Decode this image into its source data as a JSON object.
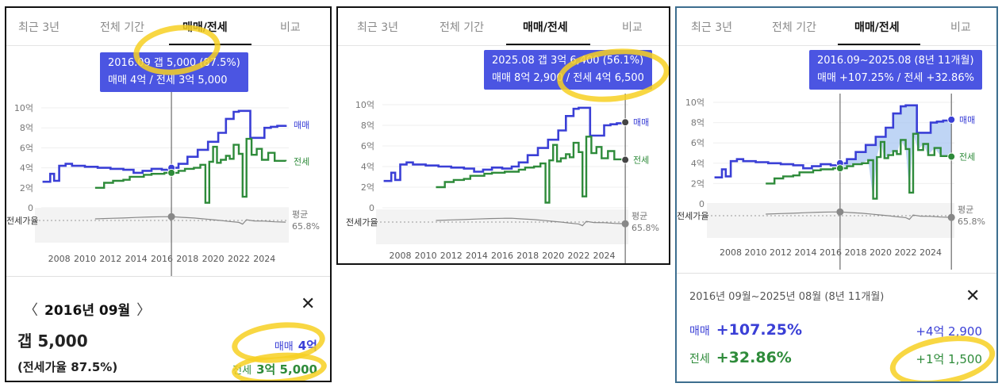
{
  "tabs": [
    "최근 3년",
    "전체 기간",
    "매매/전세",
    "비교"
  ],
  "active_tab": "매매/전세",
  "colors": {
    "sale": "#3a3fd6",
    "jeonse": "#2e8b3a",
    "ratio": "#888888",
    "tooltip_bg": "#4b55e2",
    "highlight": "#f7d022",
    "fill": "#a9c7f2"
  },
  "panel1": {
    "tooltip_line1": "2016.09  갭 5,000 (87.5%)",
    "tooltip_line2": "매매 4억 / 전세 3억 5,000",
    "detail": {
      "date": "2016년 09월",
      "prev_icon": "chevron-left-icon",
      "next_icon": "chevron-right-icon",
      "close_icon": "close-icon",
      "gap": "갭 5,000",
      "ratio": "(전세가율 87.5%)",
      "sale_label": "매매",
      "sale_value": "4억",
      "jeonse_label": "전세",
      "jeonse_value": "3억 5,000"
    }
  },
  "panel2": {
    "tooltip_line1": "2025.08  갭 3억 6,400 (56.1%)",
    "tooltip_line2": "매매 8억 2,900 / 전세 4억 6,500"
  },
  "panel3": {
    "tooltip_line1": "2016.09~2025.08 (8년 11개월)",
    "tooltip_line2": "매매 +107.25%  /  전세 +32.86%",
    "detail": {
      "range": "2016년 09월~2025년 08월 (8년 11개월)",
      "close_icon": "close-icon",
      "sale_label": "매매",
      "sale_rate": "+107.25%",
      "sale_amount": "+4억 2,900",
      "jeonse_label": "전세",
      "jeonse_rate": "+32.86%",
      "jeonse_amount": "+1억 1,500"
    }
  },
  "chart_data": {
    "type": "line",
    "y_ticks": [
      "10억",
      "8억",
      "6억",
      "4억",
      "2억",
      "0"
    ],
    "ylim": [
      0,
      10
    ],
    "x_ticks": [
      "2008",
      "2010",
      "2012",
      "2014",
      "2016",
      "2018",
      "2020",
      "2022",
      "2024"
    ],
    "xlim": [
      2006.6,
      2025.9
    ],
    "ratio_label": "전세가율",
    "avg_label_1": "평균",
    "avg_label_2": "65.8%",
    "avg_ratio": 65.8,
    "series": [
      {
        "name": "매매",
        "key": "sale",
        "x": [
          2006.7,
          2007.0,
          2007.3,
          2007.6,
          2008.0,
          2008.5,
          2009.0,
          2010.0,
          2011.0,
          2012.0,
          2013.0,
          2013.8,
          2014.5,
          2015.2,
          2016.0,
          2016.75,
          2017.3,
          2018.0,
          2018.8,
          2019.6,
          2020.4,
          2021.0,
          2021.6,
          2022.0,
          2022.4,
          2022.9,
          2023.5,
          2024.0,
          2024.5,
          2025.0,
          2025.66
        ],
        "values": [
          2.6,
          2.6,
          3.4,
          2.7,
          4.2,
          4.4,
          4.2,
          4.1,
          4.0,
          3.9,
          3.8,
          3.5,
          3.7,
          3.9,
          3.8,
          4.0,
          4.4,
          5.1,
          5.8,
          6.6,
          7.5,
          8.9,
          9.6,
          9.7,
          9.7,
          7.0,
          7.0,
          8.0,
          8.1,
          8.2,
          8.29
        ]
      },
      {
        "name": "전세",
        "key": "jeonse",
        "x": [
          2010.8,
          2011.5,
          2012.2,
          2013.0,
          2013.5,
          2014.0,
          2014.6,
          2015.2,
          2015.8,
          2016.2,
          2016.75,
          2017.3,
          2017.8,
          2018.5,
          2019.0,
          2019.4,
          2019.7,
          2020.0,
          2020.3,
          2020.6,
          2021.0,
          2021.3,
          2021.6,
          2022.0,
          2022.3,
          2022.6,
          2023.0,
          2023.4,
          2023.8,
          2024.3,
          2024.8,
          2025.3,
          2025.66
        ],
        "values": [
          2.0,
          2.5,
          2.7,
          2.8,
          3.1,
          3.1,
          3.3,
          3.4,
          3.4,
          3.5,
          3.5,
          3.7,
          3.9,
          4.0,
          4.3,
          0.5,
          4.6,
          6.1,
          4.5,
          4.8,
          5.2,
          4.9,
          6.3,
          5.4,
          1.1,
          6.9,
          5.3,
          5.9,
          4.8,
          5.5,
          4.7,
          4.7,
          4.65
        ]
      },
      {
        "name": "전세가율",
        "key": "ratio",
        "x": [
          2010.8,
          2012.0,
          2013.0,
          2014.0,
          2015.0,
          2016.0,
          2016.75,
          2017.5,
          2018.5,
          2019.4,
          2020.0,
          2020.6,
          2021.3,
          2022.0,
          2022.3,
          2022.6,
          2023.2,
          2024.0,
          2024.8,
          2025.66
        ],
        "values": [
          75,
          78,
          80,
          83,
          86,
          87,
          87.5,
          84,
          80,
          74,
          70,
          66,
          60,
          55,
          45,
          70,
          63,
          62,
          58,
          56.1
        ]
      }
    ],
    "selected_points": [
      {
        "x": 2016.75,
        "sale": 4.0,
        "jeonse": 3.5,
        "ratio": 87.5
      },
      {
        "x": 2025.66,
        "sale": 8.29,
        "jeonse": 4.65,
        "ratio": 56.1
      }
    ]
  }
}
